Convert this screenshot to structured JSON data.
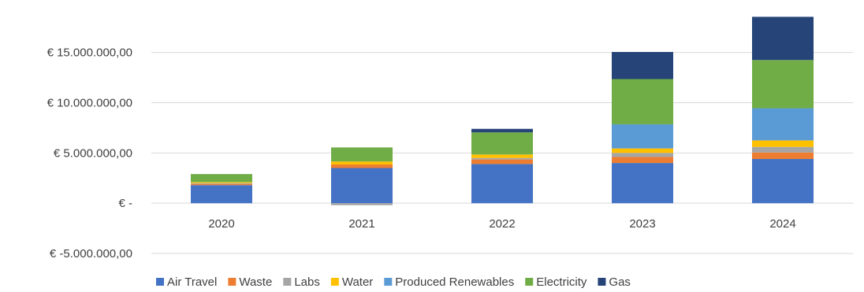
{
  "chart_data": {
    "type": "bar",
    "stacked": true,
    "categories": [
      "2020",
      "2021",
      "2022",
      "2023",
      "2024"
    ],
    "ylim": [
      -5000000,
      18500000
    ],
    "yticks": [
      -5000000,
      0,
      5000000,
      10000000,
      15000000
    ],
    "ytick_labels": [
      "€ -5.000.000,00",
      "€ -",
      "€ 5.000.000,00",
      "€ 10.000.000,00",
      "€ 15.000.000,00"
    ],
    "grid": true,
    "legend_position": "bottom",
    "series": [
      {
        "name": "Air Travel",
        "color": "#4472C4",
        "values": [
          1800000,
          3500000,
          3900000,
          4000000,
          4400000
        ]
      },
      {
        "name": "Waste",
        "color": "#ED7D31",
        "values": [
          120000,
          350000,
          450000,
          600000,
          650000
        ]
      },
      {
        "name": "Labs",
        "color": "#A5A5A5",
        "values": [
          80000,
          -200000,
          150000,
          400000,
          550000
        ]
      },
      {
        "name": "Water",
        "color": "#FFC000",
        "values": [
          100000,
          300000,
          350000,
          450000,
          650000
        ]
      },
      {
        "name": "Produced Renewables",
        "color": "#5B9BD5",
        "values": [
          0,
          0,
          0,
          2400000,
          3200000
        ]
      },
      {
        "name": "Electricity",
        "color": "#70AD47",
        "values": [
          800000,
          1400000,
          2200000,
          4500000,
          4800000
        ]
      },
      {
        "name": "Gas",
        "color": "#264478",
        "values": [
          0,
          0,
          350000,
          2700000,
          4300000
        ]
      }
    ]
  }
}
